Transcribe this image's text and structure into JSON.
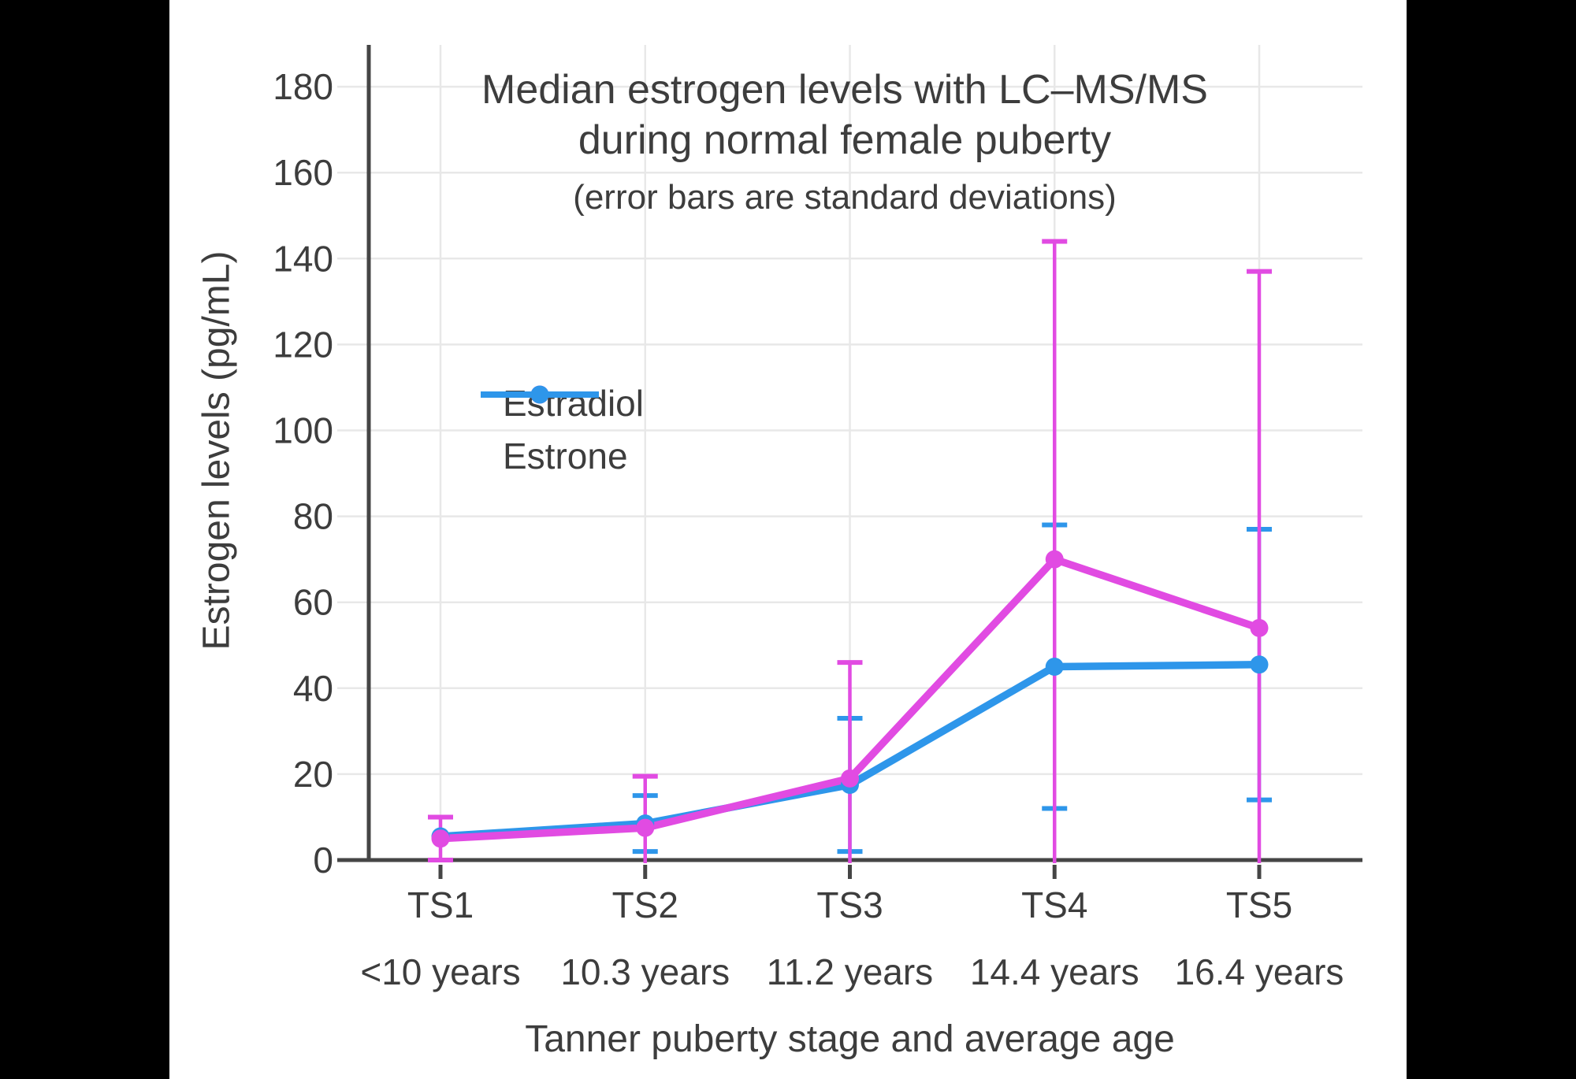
{
  "page": {
    "background": "#000000",
    "canvas_background": "#ffffff",
    "text_color": "#3d3d3d",
    "axis_color": "#454545",
    "grid_color": "#e8e8e8"
  },
  "chart_data": {
    "type": "line",
    "title": "Median estrogen levels with LC–MS/MS during normal female puberty",
    "title_line1": "Median estrogen levels with LC–MS/MS",
    "title_line2": "during normal female puberty",
    "subtitle": "(error bars are standard deviations)",
    "xlabel": "Tanner puberty stage and average age",
    "ylabel": "Estrogen levels (pg/mL)",
    "categories": [
      "TS1",
      "TS2",
      "TS3",
      "TS4",
      "TS5"
    ],
    "category_ages": [
      "<10 years",
      "10.3 years",
      "11.2 years",
      "14.4 years",
      "16.4 years"
    ],
    "y_ticks": [
      0,
      20,
      40,
      60,
      80,
      100,
      120,
      140,
      160,
      180
    ],
    "ylim": [
      0,
      190
    ],
    "grid": true,
    "legend_position": "inside-upper-left",
    "error_bar_type": "standard deviations",
    "series": [
      {
        "name": "Estradiol",
        "color": "#e14be2",
        "values": [
          5,
          7.5,
          19,
          70,
          54
        ],
        "sd": [
          5,
          12,
          27,
          74,
          83
        ]
      },
      {
        "name": "Estrone",
        "color": "#2e96ea",
        "values": [
          5.5,
          8.5,
          17.5,
          45,
          45.5
        ],
        "sd": [
          null,
          6.5,
          15.5,
          33,
          31.5
        ]
      }
    ]
  }
}
